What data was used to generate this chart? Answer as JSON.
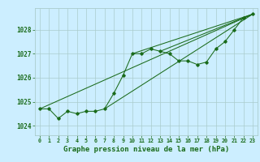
{
  "title": "Graphe pression niveau de la mer (hPa)",
  "bg_color": "#cceeff",
  "grid_color": "#aacccc",
  "line_color": "#1a6b1a",
  "xlim": [
    -0.5,
    23.5
  ],
  "ylim": [
    1023.6,
    1028.9
  ],
  "yticks": [
    1024,
    1025,
    1026,
    1027,
    1028
  ],
  "xticks": [
    0,
    1,
    2,
    3,
    4,
    5,
    6,
    7,
    8,
    9,
    10,
    11,
    12,
    13,
    14,
    15,
    16,
    17,
    18,
    19,
    20,
    21,
    22,
    23
  ],
  "main_series": [
    [
      0,
      1024.7
    ],
    [
      1,
      1024.7
    ],
    [
      2,
      1024.3
    ],
    [
      3,
      1024.6
    ],
    [
      4,
      1024.5
    ],
    [
      5,
      1024.6
    ],
    [
      6,
      1024.6
    ],
    [
      7,
      1024.7
    ],
    [
      8,
      1025.35
    ],
    [
      9,
      1026.1
    ],
    [
      10,
      1027.0
    ],
    [
      11,
      1027.0
    ],
    [
      12,
      1027.2
    ],
    [
      13,
      1027.1
    ],
    [
      14,
      1027.0
    ],
    [
      15,
      1026.7
    ],
    [
      16,
      1026.7
    ],
    [
      17,
      1026.55
    ],
    [
      18,
      1026.65
    ],
    [
      19,
      1027.2
    ],
    [
      20,
      1027.5
    ],
    [
      21,
      1028.0
    ],
    [
      22,
      1028.5
    ],
    [
      23,
      1028.65
    ]
  ],
  "trend_lines": [
    [
      [
        0,
        1024.7
      ],
      [
        23,
        1028.65
      ]
    ],
    [
      [
        7,
        1024.7
      ],
      [
        23,
        1028.65
      ]
    ],
    [
      [
        10,
        1027.0
      ],
      [
        23,
        1028.65
      ]
    ],
    [
      [
        13,
        1027.1
      ],
      [
        23,
        1028.65
      ]
    ]
  ],
  "ylabel_fontsize": 5.5,
  "xlabel_fontsize": 6.5,
  "xtick_fontsize": 4.8,
  "ytick_fontsize": 5.5
}
